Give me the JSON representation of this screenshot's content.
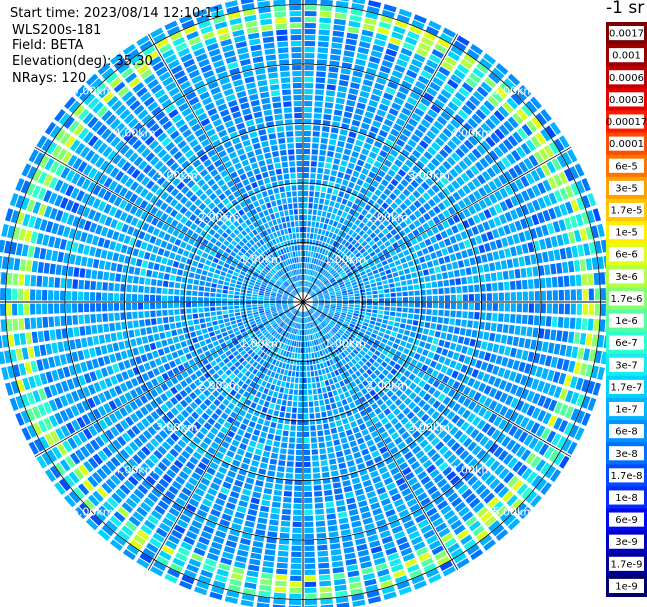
{
  "header": {
    "start_time": "Start time: 2023/08/14 12:10:11",
    "instrument": "WLS200s-181",
    "field": "Field: BETA",
    "elevation": "Elevation(deg): 35.30",
    "nrays": "NRays: 120"
  },
  "colorbar": {
    "units_label": "-1 sr",
    "levels": [
      {
        "label": "0.0017",
        "color": "#7f0000"
      },
      {
        "label": "0.001",
        "color": "#9b0000"
      },
      {
        "label": "0.0006",
        "color": "#c00000"
      },
      {
        "label": "0.0003",
        "color": "#e50000"
      },
      {
        "label": "0.00017",
        "color": "#ff1a00"
      },
      {
        "label": "0.0001",
        "color": "#ff4d00"
      },
      {
        "label": "6e-5",
        "color": "#ff7300"
      },
      {
        "label": "3e-5",
        "color": "#ffa000"
      },
      {
        "label": "1.7e-5",
        "color": "#ffc800"
      },
      {
        "label": "1e-5",
        "color": "#ffee00"
      },
      {
        "label": "6e-6",
        "color": "#e0ff16"
      },
      {
        "label": "3e-6",
        "color": "#b4ff43"
      },
      {
        "label": "1.7e-6",
        "color": "#86ff70"
      },
      {
        "label": "1e-6",
        "color": "#57ff9f"
      },
      {
        "label": "6e-7",
        "color": "#2fffcf"
      },
      {
        "label": "3e-7",
        "color": "#14ecf0"
      },
      {
        "label": "1.7e-7",
        "color": "#00d2ff"
      },
      {
        "label": "1e-7",
        "color": "#00b2ff"
      },
      {
        "label": "6e-8",
        "color": "#0093ff"
      },
      {
        "label": "3e-8",
        "color": "#0070ff"
      },
      {
        "label": "1.7e-8",
        "color": "#004cff"
      },
      {
        "label": "1e-8",
        "color": "#002cff"
      },
      {
        "label": "6e-9",
        "color": "#0008f0"
      },
      {
        "label": "3e-9",
        "color": "#0000c4"
      },
      {
        "label": "1.7e-9",
        "color": "#000098"
      },
      {
        "label": "1e-9",
        "color": "#000070"
      }
    ]
  },
  "chart_data": {
    "type": "heatmap",
    "projection": "polar-ppi",
    "rays": 120,
    "range_rings_km": [
      1,
      2,
      3,
      4,
      5
    ],
    "ring_labels": [
      "1.00km",
      "2.00km",
      "3.00km",
      "4.00km",
      "5.00km"
    ],
    "max_range_km": 5.2,
    "colormap_scale": "log",
    "typical_value": "1e-7",
    "enhanced_band": {
      "range_km": [
        4.6,
        5.0
      ],
      "value_range": [
        "1.7e-7",
        "6e-6"
      ]
    },
    "grid": true
  }
}
